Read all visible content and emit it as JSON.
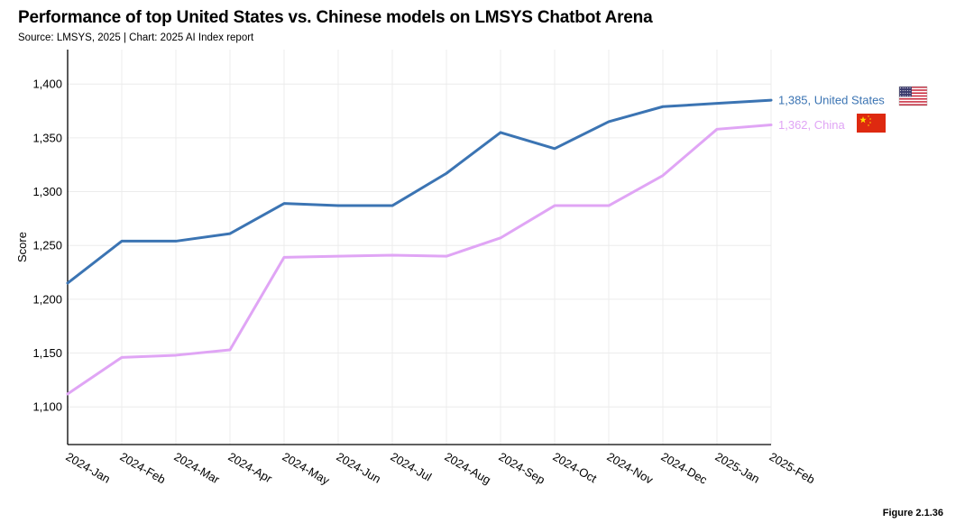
{
  "header": {
    "title": "Performance of top United States vs. Chinese models on LMSYS Chatbot Arena",
    "source": "Source: LMSYS, 2025 | Chart: 2025 AI Index report"
  },
  "footer": {
    "figure": "Figure 2.1.36"
  },
  "chart_data": {
    "type": "line",
    "title": "Performance of top United States vs. Chinese models on LMSYS Chatbot Arena",
    "xlabel": "",
    "ylabel": "Score",
    "ylim": [
      1065,
      1432
    ],
    "yticks": [
      1100,
      1150,
      1200,
      1250,
      1300,
      1350,
      1400
    ],
    "ytick_labels": [
      "1,100",
      "1,150",
      "1,200",
      "1,250",
      "1,300",
      "1,350",
      "1,400"
    ],
    "grid": true,
    "categories": [
      "2024-Jan",
      "2024-Feb",
      "2024-Mar",
      "2024-Apr",
      "2024-May",
      "2024-Jun",
      "2024-Jul",
      "2024-Aug",
      "2024-Sep",
      "2024-Oct",
      "2024-Nov",
      "2024-Dec",
      "2025-Jan",
      "2025-Feb"
    ],
    "series": [
      {
        "name": "United States",
        "color": "#3b74b3",
        "end_label": "1,385, United States",
        "flag_icon": "us-flag-icon",
        "values": [
          1215,
          1254,
          1254,
          1261,
          1289,
          1287,
          1287,
          1317,
          1355,
          1340,
          1365,
          1379,
          1382,
          1385
        ]
      },
      {
        "name": "China",
        "color": "#e0a5f5",
        "end_label": "1,362, China",
        "flag_icon": "china-flag-icon",
        "values": [
          1112,
          1146,
          1148,
          1153,
          1239,
          1240,
          1241,
          1240,
          1257,
          1287,
          1287,
          1315,
          1358,
          1362
        ]
      }
    ]
  }
}
